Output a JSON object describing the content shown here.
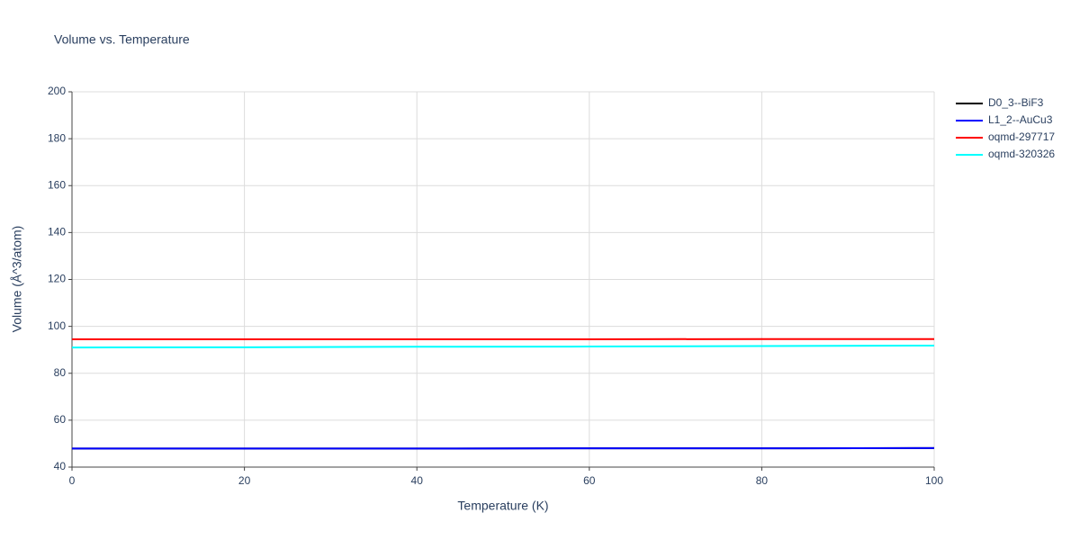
{
  "chart_data": {
    "type": "line",
    "title": "Volume vs. Temperature",
    "x_label": "Temperature (K)",
    "y_label": "Volume (Å^3/atom)",
    "x": [
      0,
      20,
      40,
      60,
      80,
      100
    ],
    "series": [
      {
        "name": "D0_3--BiF3",
        "color": "#000000",
        "values": [
          47.9,
          47.9,
          47.9,
          48.0,
          48.0,
          48.1
        ]
      },
      {
        "name": "L1_2--AuCu3",
        "color": "#0000ff",
        "values": [
          47.9,
          47.9,
          47.9,
          48.0,
          48.0,
          48.1
        ]
      },
      {
        "name": "oqmd-297717",
        "color": "#ff0000",
        "values": [
          94.5,
          94.5,
          94.5,
          94.5,
          94.6,
          94.6
        ]
      },
      {
        "name": "oqmd-320326",
        "color": "#00ffff",
        "values": [
          91.0,
          91.1,
          91.3,
          91.4,
          91.6,
          91.8
        ]
      }
    ],
    "xlim": [
      0,
      100
    ],
    "xticks": [
      0,
      20,
      40,
      60,
      80,
      100
    ],
    "ylim": [
      40,
      200
    ],
    "yticks": [
      40,
      60,
      80,
      100,
      120,
      140,
      160,
      180,
      200
    ],
    "grid": true,
    "legend": "right"
  }
}
